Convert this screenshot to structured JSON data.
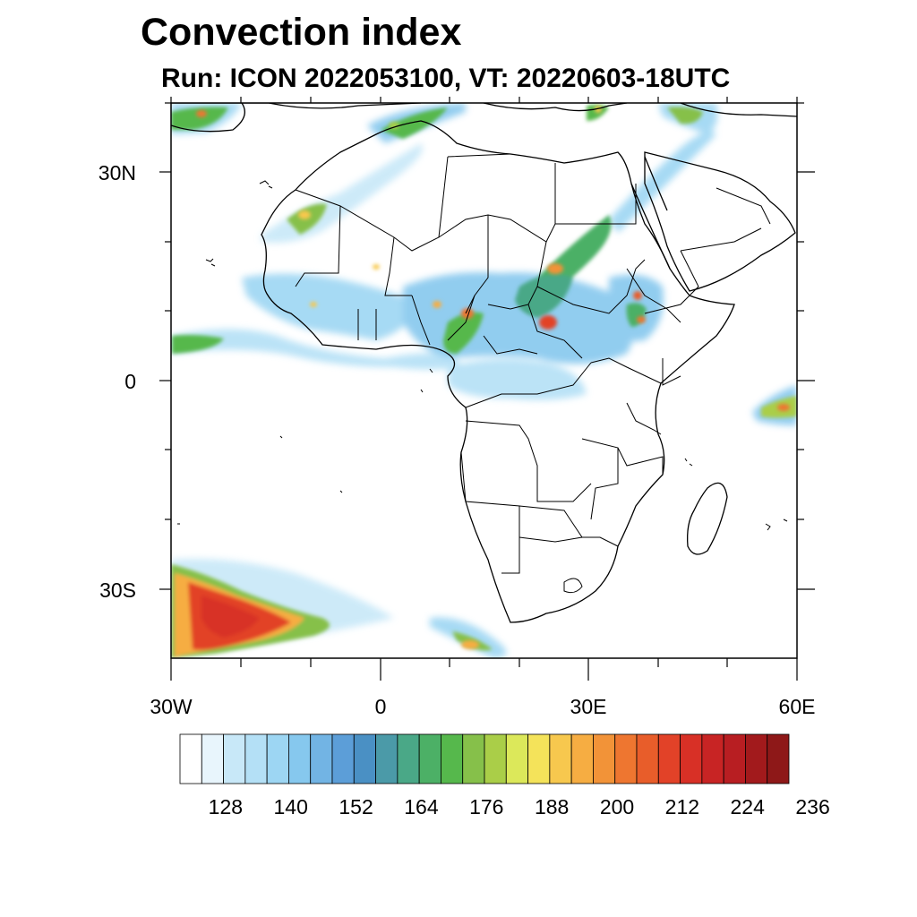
{
  "title": "Convection index",
  "subtitle": "Run: ICON 2022053100,  VT: 20220603-18UTC",
  "axes": {
    "y_ticks": [
      "30N",
      "0",
      "30S"
    ],
    "x_ticks": [
      "30W",
      "0",
      "30E",
      "60E"
    ]
  },
  "colorbar": {
    "labels": [
      "128",
      "140",
      "152",
      "164",
      "176",
      "188",
      "200",
      "212",
      "224",
      "236"
    ],
    "colors": [
      "#ffffff",
      "#e8f5fc",
      "#c8e8f8",
      "#b4e0f6",
      "#9dd6f3",
      "#86c8ee",
      "#72b4e4",
      "#5c9ed8",
      "#4a90c4",
      "#4b9aa8",
      "#4aa887",
      "#4cb066",
      "#56b84c",
      "#86c04a",
      "#aace48",
      "#dce85a",
      "#f4e35a",
      "#f7c84e",
      "#f6ad42",
      "#f29338",
      "#ee7630",
      "#e85d2a",
      "#e24228",
      "#d83026",
      "#c82424",
      "#b81e22",
      "#a21a1c",
      "#8e1818"
    ]
  },
  "map": {
    "land_color": "#ffffff",
    "border_color": "#000000",
    "region": "Africa"
  }
}
